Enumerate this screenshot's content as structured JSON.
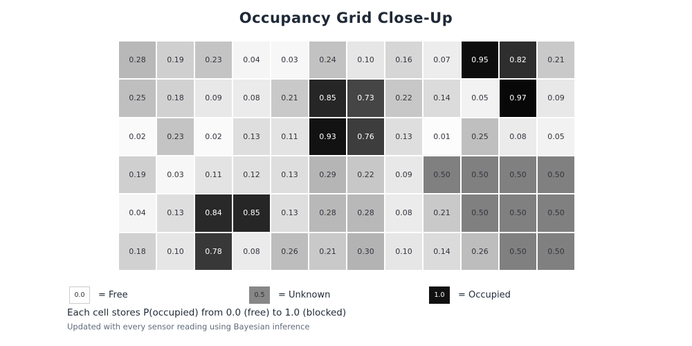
{
  "title": "Occupancy Grid Close-Up",
  "chart_data": {
    "type": "heatmap",
    "title": "Occupancy Grid Close-Up",
    "rows": 6,
    "cols": 12,
    "value_range": [
      0.0,
      1.0
    ],
    "colormap": "grayscale, white = 0.0 (free), gray = 0.5 (unknown), black = 1.0 (occupied)",
    "grid_lines": "white 2px gaps between cells",
    "values": [
      [
        0.28,
        0.19,
        0.23,
        0.04,
        0.03,
        0.24,
        0.1,
        0.16,
        0.07,
        0.95,
        0.82,
        0.21
      ],
      [
        0.25,
        0.18,
        0.09,
        0.08,
        0.21,
        0.85,
        0.73,
        0.22,
        0.14,
        0.05,
        0.97,
        0.09
      ],
      [
        0.02,
        0.23,
        0.02,
        0.13,
        0.11,
        0.93,
        0.76,
        0.13,
        0.01,
        0.25,
        0.08,
        0.05
      ],
      [
        0.19,
        0.03,
        0.11,
        0.12,
        0.13,
        0.29,
        0.22,
        0.09,
        0.5,
        0.5,
        0.5,
        0.5
      ],
      [
        0.04,
        0.13,
        0.84,
        0.85,
        0.13,
        0.28,
        0.28,
        0.08,
        0.21,
        0.5,
        0.5,
        0.5
      ],
      [
        0.18,
        0.1,
        0.78,
        0.08,
        0.26,
        0.21,
        0.3,
        0.1,
        0.14,
        0.26,
        0.5,
        0.5
      ]
    ]
  },
  "legend": {
    "items": [
      {
        "swatch_value": "0.0",
        "swatch_color": "#ffffff",
        "swatch_border": "#cccccc",
        "swatch_text_color": "#33343c",
        "label": "= Free"
      },
      {
        "swatch_value": "0.5",
        "swatch_color": "#878787",
        "swatch_border": "#878787",
        "swatch_text_color": "#2c2d34",
        "label": "= Unknown"
      },
      {
        "swatch_value": "1.0",
        "swatch_color": "#111111",
        "swatch_border": "#111111",
        "swatch_text_color": "#ffffff",
        "label": "= Occupied"
      }
    ]
  },
  "footer": {
    "line1": "Each cell stores P(occupied) from 0.0 (free) to 1.0 (blocked)",
    "line2": "Updated with every sensor reading using Bayesian inference"
  },
  "colors": {
    "background": "#ffffff",
    "title_text": "#1f2937",
    "cell_text_dark": "#33343c",
    "cell_text_light": "#ffffff",
    "footer_primary": "#1f2937",
    "footer_secondary": "#5f6b7a"
  }
}
